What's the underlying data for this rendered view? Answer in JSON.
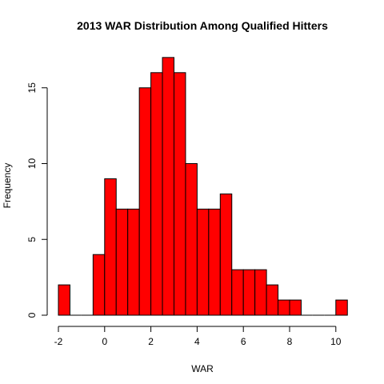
{
  "chart_data": {
    "type": "bar",
    "title": "2013 WAR Distribution Among Qualified Hitters",
    "xlabel": "WAR",
    "ylabel": "Frequency",
    "bin_width": 0.5,
    "bins": [
      {
        "x0": -2.0,
        "x1": -1.5,
        "count": 2
      },
      {
        "x0": -1.5,
        "x1": -1.0,
        "count": 0
      },
      {
        "x0": -1.0,
        "x1": -0.5,
        "count": 0
      },
      {
        "x0": -0.5,
        "x1": 0.0,
        "count": 4
      },
      {
        "x0": 0.0,
        "x1": 0.5,
        "count": 9
      },
      {
        "x0": 0.5,
        "x1": 1.0,
        "count": 7
      },
      {
        "x0": 1.0,
        "x1": 1.5,
        "count": 7
      },
      {
        "x0": 1.5,
        "x1": 2.0,
        "count": 15
      },
      {
        "x0": 2.0,
        "x1": 2.5,
        "count": 16
      },
      {
        "x0": 2.5,
        "x1": 3.0,
        "count": 17
      },
      {
        "x0": 3.0,
        "x1": 3.5,
        "count": 16
      },
      {
        "x0": 3.5,
        "x1": 4.0,
        "count": 10
      },
      {
        "x0": 4.0,
        "x1": 4.5,
        "count": 7
      },
      {
        "x0": 4.5,
        "x1": 5.0,
        "count": 7
      },
      {
        "x0": 5.0,
        "x1": 5.5,
        "count": 8
      },
      {
        "x0": 5.5,
        "x1": 6.0,
        "count": 3
      },
      {
        "x0": 6.0,
        "x1": 6.5,
        "count": 3
      },
      {
        "x0": 6.5,
        "x1": 7.0,
        "count": 3
      },
      {
        "x0": 7.0,
        "x1": 7.5,
        "count": 2
      },
      {
        "x0": 7.5,
        "x1": 8.0,
        "count": 1
      },
      {
        "x0": 8.0,
        "x1": 8.5,
        "count": 1
      },
      {
        "x0": 8.5,
        "x1": 9.0,
        "count": 0
      },
      {
        "x0": 9.0,
        "x1": 9.5,
        "count": 0
      },
      {
        "x0": 9.5,
        "x1": 10.0,
        "count": 0
      },
      {
        "x0": 10.0,
        "x1": 10.5,
        "count": 1
      }
    ],
    "xticks": [
      -2,
      0,
      2,
      4,
      6,
      8,
      10
    ],
    "yticks": [
      0,
      5,
      10,
      15
    ],
    "xlim": [
      -2,
      10.5
    ],
    "ylim": [
      0,
      17
    ],
    "bar_color": "#ff0000",
    "grid": false,
    "legend": "none"
  }
}
